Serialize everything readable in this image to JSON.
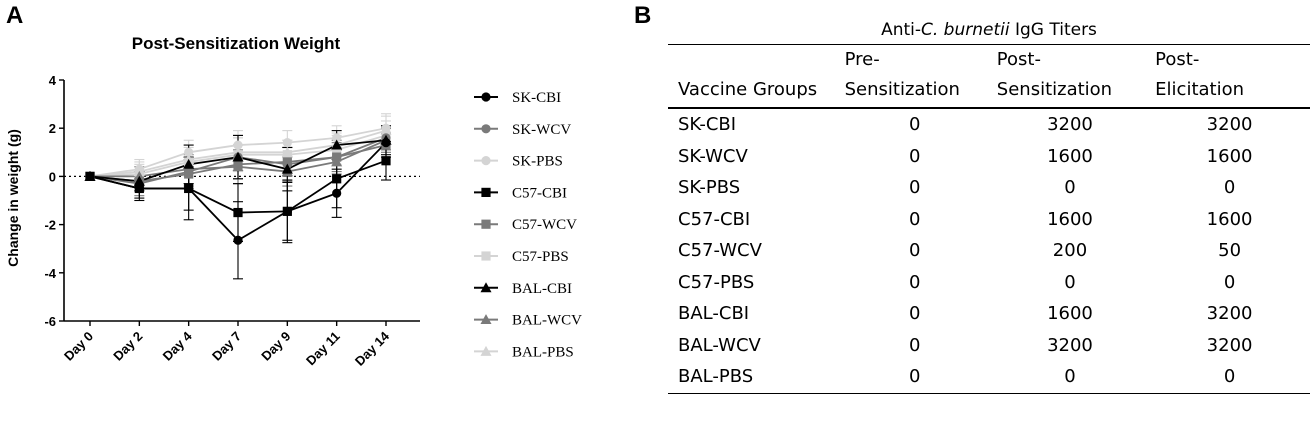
{
  "panel_a_letter": "A",
  "panel_b_letter": "B",
  "chart_data": {
    "type": "line",
    "title": "Post-Sensitization Weight",
    "ylabel": "Change in weight (g)",
    "xlabel": "",
    "categories": [
      "Day 0",
      "Day 2",
      "Day 4",
      "Day 7",
      "Day 9",
      "Day 11",
      "Day 14"
    ],
    "ylim": [
      -6,
      4
    ],
    "yticks": [
      -6,
      -4,
      -2,
      0,
      2,
      4
    ],
    "reference_line": 0,
    "grid": false,
    "legend": "right",
    "series": [
      {
        "name": "SK-CBI",
        "marker": "circle",
        "color": "#000000",
        "values": [
          0,
          -0.5,
          -0.5,
          -2.65,
          -1.45,
          -0.7,
          1.4
        ],
        "errors": [
          0,
          0.5,
          1.3,
          1.6,
          1.3,
          1.0,
          0.6
        ]
      },
      {
        "name": "SK-WCV",
        "marker": "circle",
        "color": "#7a7a7a",
        "values": [
          0,
          -0.3,
          0.2,
          0.8,
          0.5,
          0.8,
          1.6
        ],
        "errors": [
          0,
          0.5,
          0.6,
          0.9,
          0.7,
          0.7,
          0.5
        ]
      },
      {
        "name": "SK-PBS",
        "marker": "circle",
        "color": "#d4d4d4",
        "values": [
          0,
          0.3,
          1.0,
          1.3,
          1.4,
          1.6,
          2.0
        ],
        "errors": [
          0,
          0.4,
          0.5,
          0.6,
          0.5,
          0.5,
          0.6
        ]
      },
      {
        "name": "C57-CBI",
        "marker": "square",
        "color": "#000000",
        "values": [
          0,
          -0.5,
          -0.5,
          -1.5,
          -1.45,
          -0.1,
          0.65
        ],
        "errors": [
          0,
          0.4,
          0.9,
          1.2,
          1.2,
          1.2,
          0.8
        ]
      },
      {
        "name": "C57-WCV",
        "marker": "square",
        "color": "#7a7a7a",
        "values": [
          0,
          -0.2,
          0.1,
          0.5,
          0.6,
          0.8,
          1.3
        ],
        "errors": [
          0,
          0.4,
          0.6,
          0.8,
          0.6,
          0.6,
          0.5
        ]
      },
      {
        "name": "C57-PBS",
        "marker": "square",
        "color": "#d4d4d4",
        "values": [
          0,
          0.1,
          0.6,
          0.9,
          0.9,
          1.1,
          1.7
        ],
        "errors": [
          0,
          0.4,
          0.6,
          0.7,
          0.6,
          0.6,
          0.6
        ]
      },
      {
        "name": "BAL-CBI",
        "marker": "triangle",
        "color": "#000000",
        "values": [
          0,
          -0.2,
          0.5,
          0.8,
          0.3,
          1.3,
          1.5
        ],
        "errors": [
          0,
          0.4,
          0.8,
          0.9,
          0.9,
          0.6,
          0.6
        ]
      },
      {
        "name": "BAL-WCV",
        "marker": "triangle",
        "color": "#7a7a7a",
        "values": [
          0,
          0.0,
          0.3,
          0.4,
          0.2,
          0.6,
          1.5
        ],
        "errors": [
          0,
          0.4,
          0.6,
          0.7,
          0.6,
          0.6,
          0.5
        ]
      },
      {
        "name": "BAL-PBS",
        "marker": "triangle",
        "color": "#d4d4d4",
        "values": [
          0,
          0.2,
          0.7,
          1.0,
          1.0,
          1.3,
          1.9
        ],
        "errors": [
          0,
          0.4,
          0.6,
          0.6,
          0.5,
          0.5,
          0.6
        ]
      }
    ]
  },
  "table": {
    "title_prefix": "Anti-",
    "title_italic": "C. burnetii",
    "title_suffix": " IgG Titers",
    "headers": {
      "group": "Vaccine Groups",
      "pre_line1": "Pre-",
      "pre_line2": "Sensitization",
      "post_line1": "Post-",
      "post_line2": "Sensitization",
      "elic_line1": "Post-",
      "elic_line2": "Elicitation"
    },
    "rows": [
      {
        "group": "SK-CBI",
        "pre": "0",
        "post_sens": "3200",
        "post_elic": "3200"
      },
      {
        "group": "SK-WCV",
        "pre": "0",
        "post_sens": "1600",
        "post_elic": "1600"
      },
      {
        "group": "SK-PBS",
        "pre": "0",
        "post_sens": "0",
        "post_elic": "0"
      },
      {
        "group": "C57-CBI",
        "pre": "0",
        "post_sens": "1600",
        "post_elic": "1600"
      },
      {
        "group": "C57-WCV",
        "pre": "0",
        "post_sens": "200",
        "post_elic": "50"
      },
      {
        "group": "C57-PBS",
        "pre": "0",
        "post_sens": "0",
        "post_elic": "0"
      },
      {
        "group": "BAL-CBI",
        "pre": "0",
        "post_sens": "1600",
        "post_elic": "3200"
      },
      {
        "group": "BAL-WCV",
        "pre": "0",
        "post_sens": "3200",
        "post_elic": "3200"
      },
      {
        "group": "BAL-PBS",
        "pre": "0",
        "post_sens": "0",
        "post_elic": "0"
      }
    ]
  }
}
